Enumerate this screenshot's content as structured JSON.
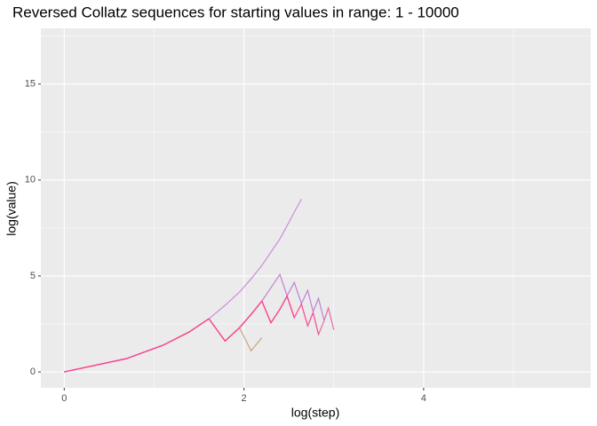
{
  "chart_data": {
    "type": "line",
    "title": "Reversed Collatz sequences for starting values in range: 1 - 10000",
    "x_label": "log(step)",
    "y_label": "log(value)",
    "xlim": [
      -0.26,
      5.86
    ],
    "ylim": [
      -0.83,
      17.9
    ],
    "xticks": [
      0,
      2,
      4
    ],
    "yticks": [
      0,
      5,
      10,
      15
    ],
    "xminorticks": [
      1,
      3,
      5
    ],
    "yminorticks": [
      2.5,
      7.5,
      12.5,
      17.5
    ],
    "grid": true,
    "panel_color": "#ebebeb",
    "series": [
      {
        "color": "#c77cdb",
        "x": [
          0,
          0.69,
          1.1,
          1.39,
          1.61,
          1.79,
          1.95,
          2.08,
          2.2,
          2.3,
          2.4,
          2.48,
          2.56,
          2.64
        ],
        "values": [
          0,
          0.69,
          1.39,
          2.08,
          2.77,
          3.47,
          4.16,
          4.85,
          5.55,
          6.24,
          6.93,
          7.62,
          8.32,
          9.01
        ]
      },
      {
        "color": "#c49a6c",
        "x": [
          0,
          0.69,
          1.1,
          1.39,
          1.61,
          1.79,
          1.95,
          2.08,
          2.2
        ],
        "values": [
          0,
          0.69,
          1.39,
          2.08,
          2.77,
          1.61,
          2.3,
          1.1,
          1.79
        ]
      },
      {
        "color": "#b86fd0",
        "x": [
          0,
          0.69,
          1.1,
          1.39,
          1.61,
          1.79,
          1.95,
          2.08,
          2.2,
          2.3,
          2.4,
          2.48,
          2.56,
          2.64,
          2.71,
          2.77,
          2.83,
          2.89
        ],
        "values": [
          0,
          0.69,
          1.39,
          2.08,
          2.77,
          1.61,
          2.3,
          3.0,
          3.69,
          4.38,
          5.08,
          3.97,
          4.66,
          3.56,
          4.25,
          3.14,
          3.83,
          2.71
        ]
      },
      {
        "color": "#e0559e",
        "x": [
          0,
          0.69,
          1.1,
          1.39,
          1.61,
          1.79,
          1.95,
          2.08,
          2.2,
          2.3,
          2.4,
          2.48,
          2.56,
          2.64,
          2.71,
          2.77,
          2.83,
          2.89,
          2.94,
          3.0
        ],
        "values": [
          0,
          0.69,
          1.39,
          2.08,
          2.77,
          1.61,
          2.3,
          3.0,
          3.69,
          2.56,
          3.26,
          3.95,
          2.83,
          3.53,
          2.4,
          3.09,
          1.95,
          2.64,
          3.33,
          2.2
        ]
      },
      {
        "color": "#ff4f9a",
        "x": [
          0,
          0.69,
          1.1,
          1.39,
          1.61,
          1.79,
          1.95,
          2.08,
          2.2,
          2.3,
          2.4,
          2.48,
          2.56,
          2.64,
          2.71,
          2.77,
          2.83
        ],
        "values": [
          0,
          0.69,
          1.39,
          2.08,
          2.77,
          1.61,
          2.3,
          3.0,
          3.69,
          2.56,
          3.26,
          3.95,
          2.83,
          3.53,
          2.4,
          3.09,
          1.95
        ]
      },
      {
        "color": "#ff3d8b",
        "x": [
          0,
          0.69,
          1.1,
          1.39,
          1.61,
          1.79,
          1.95,
          2.08,
          2.2,
          2.3,
          2.4,
          2.48,
          2.56
        ],
        "values": [
          0,
          0.69,
          1.39,
          2.08,
          2.77,
          1.61,
          2.3,
          3.0,
          3.69,
          2.56,
          3.26,
          3.95,
          2.83
        ]
      }
    ]
  }
}
